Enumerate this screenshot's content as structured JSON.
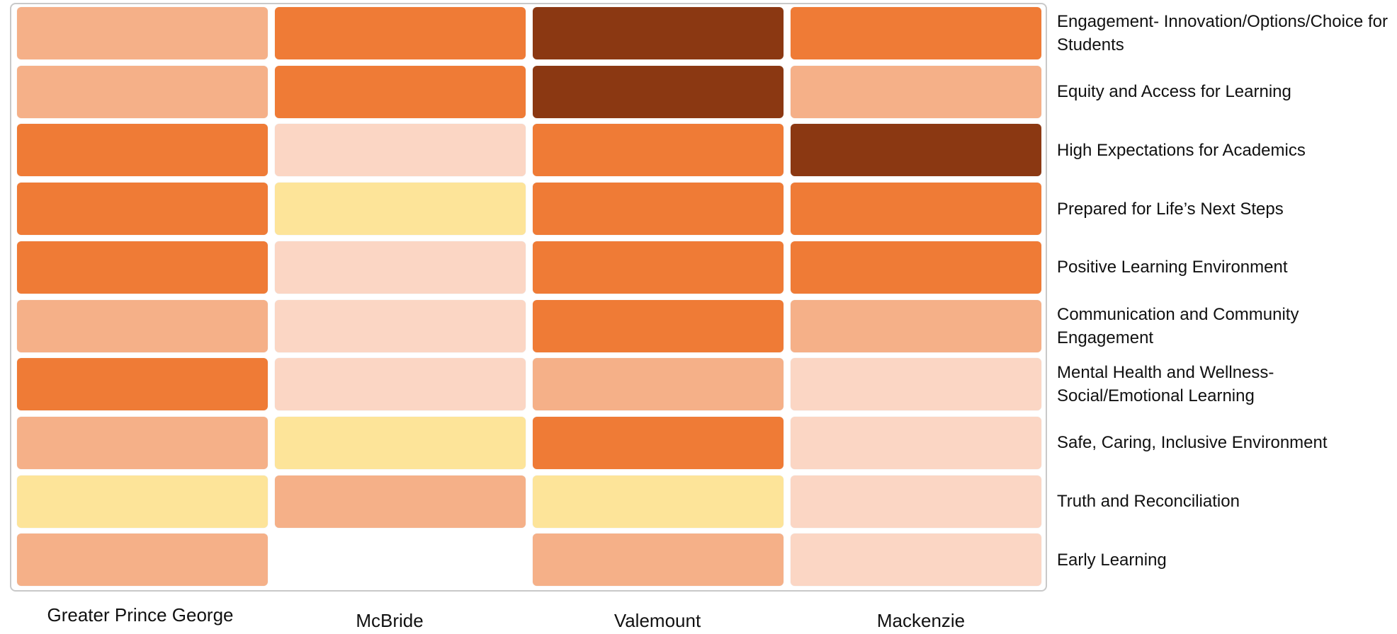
{
  "chart_data": {
    "type": "heatmap",
    "title": "",
    "columns": [
      "Greater Prince George",
      "McBride",
      "Valemount",
      "Mackenzie"
    ],
    "rows": [
      "Engagement- Innovation/Options/Choice for Students",
      "Equity and Access for Learning",
      "High Expectations for Academics",
      "Prepared for Life’s Next Steps",
      "Positive Learning Environment",
      "Communication and Community Engagement",
      "Mental Health and Wellness- Social/Emotional Learning",
      "Safe, Caring, Inclusive Environment",
      "Truth and Reconciliation",
      "Early Learning"
    ],
    "levels": [
      [
        2,
        3,
        4,
        3
      ],
      [
        2,
        3,
        4,
        2
      ],
      [
        3,
        1,
        3,
        4
      ],
      [
        3,
        0,
        3,
        3
      ],
      [
        3,
        1,
        3,
        3
      ],
      [
        2,
        1,
        3,
        2
      ],
      [
        3,
        1,
        2,
        1
      ],
      [
        2,
        0,
        3,
        1
      ],
      [
        0,
        2,
        0,
        1
      ],
      [
        2,
        null,
        2,
        1
      ]
    ],
    "level_colors": {
      "0": "#fde499",
      "1": "#fbd6c4",
      "2": "#f5b088",
      "3": "#ef7b36",
      "4": "#8b3812"
    },
    "legend": "none",
    "grid": false
  }
}
